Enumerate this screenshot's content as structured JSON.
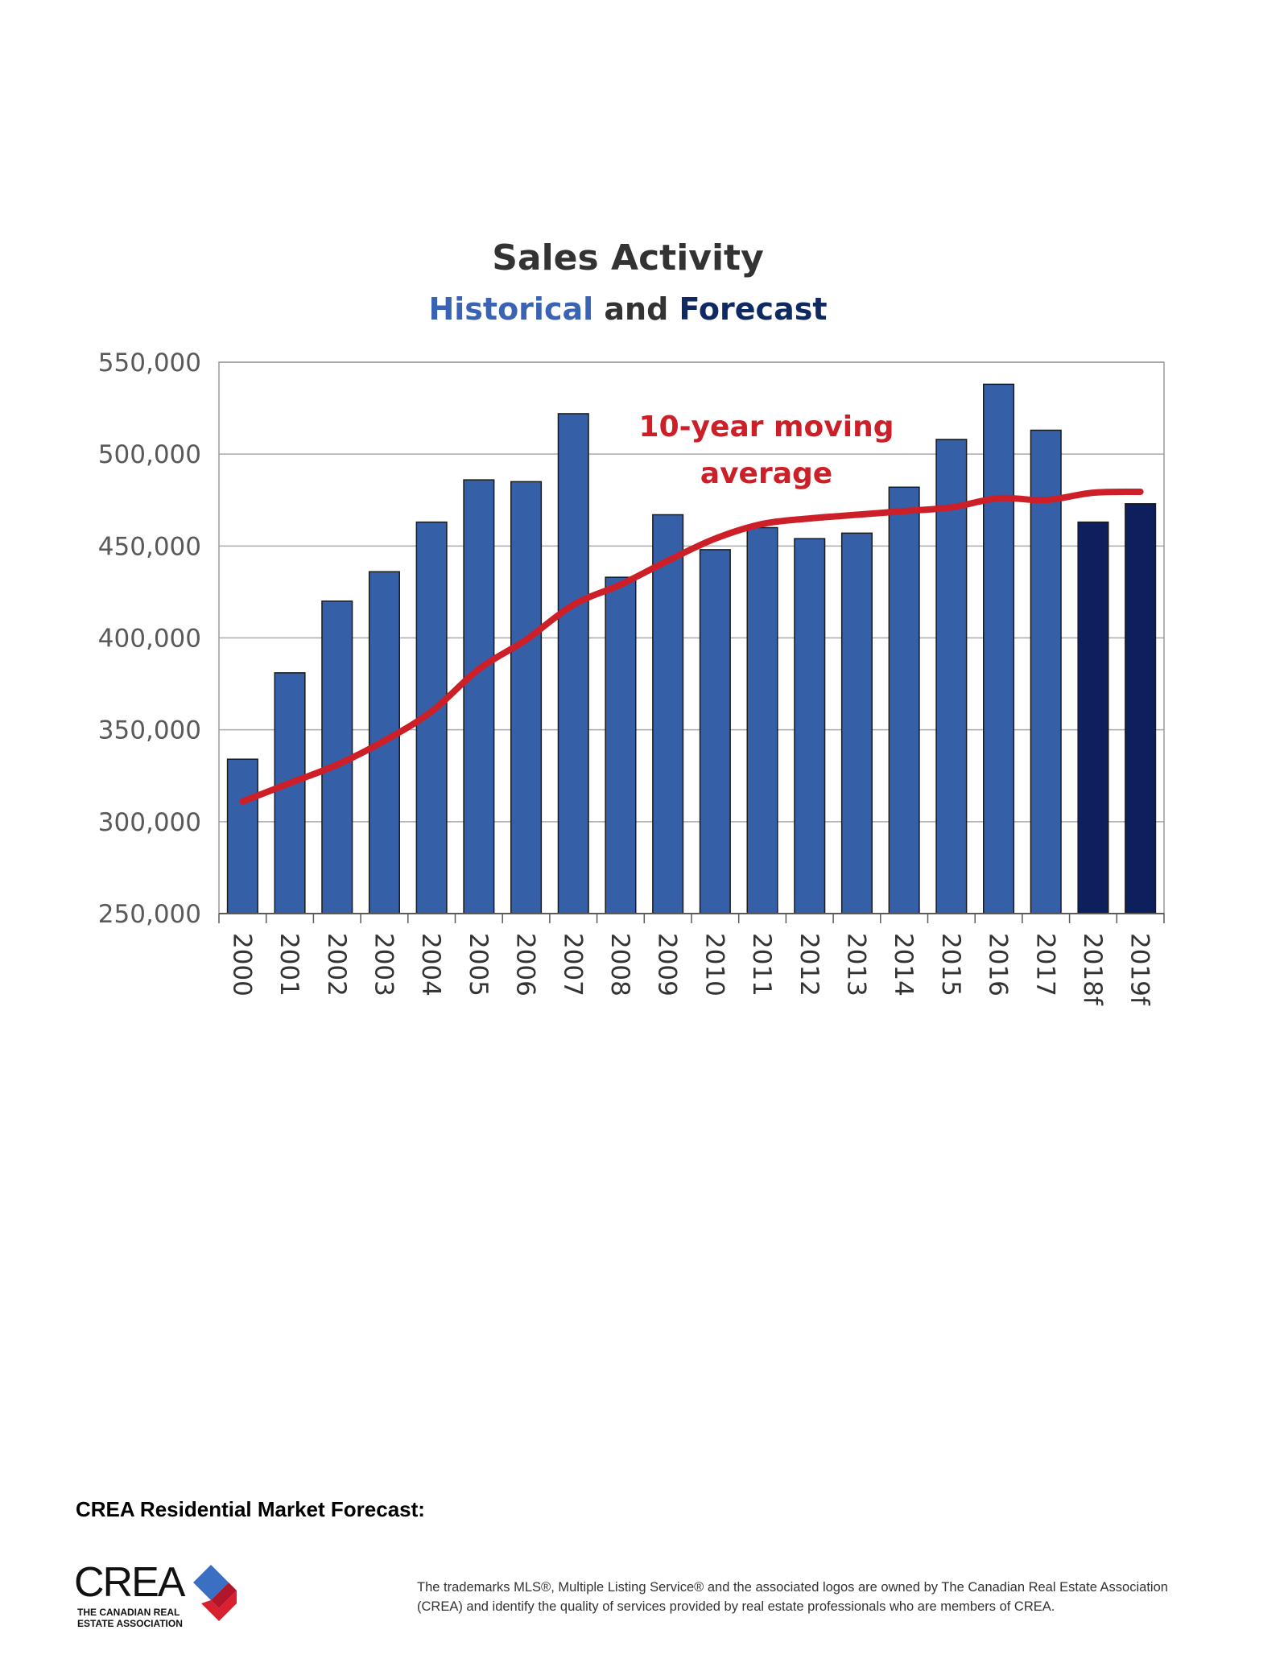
{
  "chart_data": {
    "type": "bar",
    "title": "Sales Activity",
    "subtitle_parts": [
      {
        "text": "Historical",
        "color": "#3a63b3"
      },
      {
        "text": " and ",
        "color": "#333333"
      },
      {
        "text": "Forecast",
        "color": "#0f2a63"
      }
    ],
    "categories": [
      "2000",
      "2001",
      "2002",
      "2003",
      "2004",
      "2005",
      "2006",
      "2007",
      "2008",
      "2009",
      "2010",
      "2011",
      "2012",
      "2013",
      "2014",
      "2015",
      "2016",
      "2017",
      "2018f",
      "2019f"
    ],
    "values": [
      334000,
      381000,
      420000,
      436000,
      463000,
      486000,
      485000,
      522000,
      433000,
      467000,
      448000,
      460000,
      454000,
      457000,
      482000,
      508000,
      538000,
      513000,
      463000,
      473000
    ],
    "forecast_flags": [
      false,
      false,
      false,
      false,
      false,
      false,
      false,
      false,
      false,
      false,
      false,
      false,
      false,
      false,
      false,
      false,
      false,
      false,
      true,
      true
    ],
    "line_series": {
      "name": "10-year moving average",
      "values": [
        311000,
        321000,
        331000,
        344000,
        360000,
        383000,
        399000,
        418000,
        429000,
        442000,
        454000,
        462000,
        465000,
        467000,
        469000,
        471000,
        476000,
        475000,
        479000,
        479500
      ]
    },
    "annotation": [
      "10-year moving",
      "average"
    ],
    "ylim": [
      250000,
      550000
    ],
    "yticks": [
      250000,
      300000,
      350000,
      400000,
      450000,
      500000,
      550000
    ],
    "ytick_labels": [
      "250,000",
      "300,000",
      "350,000",
      "400,000",
      "450,000",
      "500,000",
      "550,000"
    ],
    "grid": true,
    "legend": "none",
    "colors": {
      "historical_bar": "#3560a8",
      "forecast_bar": "#0d1f5c",
      "moving_average": "#cc1f28",
      "grid": "#aaaaaa"
    }
  },
  "page": {
    "section_heading": "CREA Residential Market Forecast:",
    "logo": {
      "wordmark": "CREA",
      "tagline": "THE CANADIAN REAL ESTATE ASSOCIATION"
    },
    "disclaimer": "The trademarks MLS®, Multiple Listing Service® and the associated logos are owned by The Canadian Real Estate Association (CREA) and identify the quality of services provided by real estate professionals who are members of CREA."
  }
}
